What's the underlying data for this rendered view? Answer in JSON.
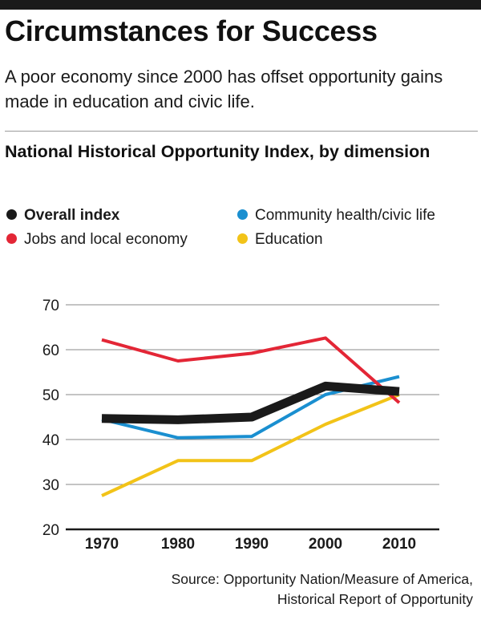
{
  "header": {
    "title": "Circumstances for Success",
    "subtitle": "A poor economy since 2000 has offset opportunity gains made in education and civic life."
  },
  "chart_data": {
    "type": "line",
    "title": "National Historical Opportunity Index, by dimension",
    "xlabel": "",
    "ylabel": "",
    "x": [
      "1970",
      "1980",
      "1990",
      "2000",
      "2010"
    ],
    "ylim": [
      20,
      70
    ],
    "yticks": [
      20,
      30,
      40,
      50,
      60,
      70
    ],
    "grid": "horizontal",
    "legend_position": "top",
    "series": [
      {
        "name": "Overall index",
        "color": "#1a1a1a",
        "values": [
          44.7,
          44.4,
          45.0,
          51.9,
          50.7
        ],
        "bold": true
      },
      {
        "name": "Community health/civic life",
        "color": "#1a8fd0",
        "values": [
          44.5,
          40.4,
          40.7,
          50.0,
          54.0
        ]
      },
      {
        "name": "Jobs and local economy",
        "color": "#e32636",
        "values": [
          62.2,
          57.5,
          59.2,
          62.6,
          48.2
        ]
      },
      {
        "name": "Education",
        "color": "#f2c318",
        "values": [
          27.5,
          35.3,
          35.3,
          43.4,
          50.0
        ]
      }
    ]
  },
  "footer": {
    "source_line1": "Source: Opportunity Nation/Measure of America,",
    "source_line2": "Historical Report of Opportunity"
  }
}
